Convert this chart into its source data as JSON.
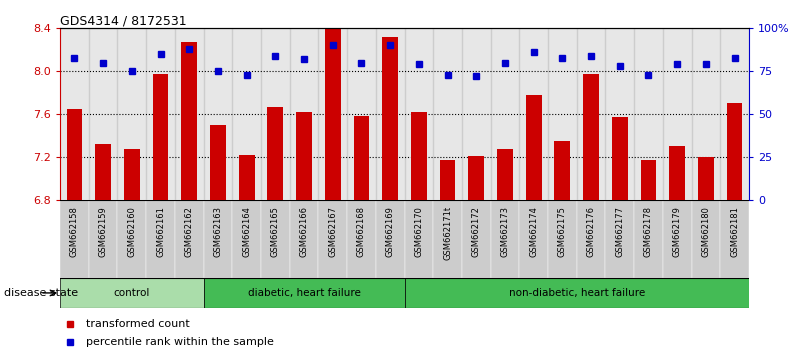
{
  "title": "GDS4314 / 8172531",
  "samples": [
    "GSM662158",
    "GSM662159",
    "GSM662160",
    "GSM662161",
    "GSM662162",
    "GSM662163",
    "GSM662164",
    "GSM662165",
    "GSM662166",
    "GSM662167",
    "GSM662168",
    "GSM662169",
    "GSM662170",
    "GSM662171t",
    "GSM662172",
    "GSM662173",
    "GSM662174",
    "GSM662175",
    "GSM662176",
    "GSM662177",
    "GSM662178",
    "GSM662179",
    "GSM662180",
    "GSM662181"
  ],
  "bar_values": [
    7.65,
    7.32,
    7.28,
    7.97,
    8.27,
    7.5,
    7.22,
    7.67,
    7.62,
    8.4,
    7.58,
    8.32,
    7.62,
    7.17,
    7.21,
    7.28,
    7.78,
    7.35,
    7.97,
    7.57,
    7.17,
    7.3,
    7.2,
    7.7
  ],
  "dot_values": [
    83,
    80,
    75,
    85,
    88,
    75,
    73,
    84,
    82,
    90,
    80,
    90,
    79,
    73,
    72,
    80,
    86,
    83,
    84,
    78,
    73,
    79,
    79,
    83
  ],
  "ylim_left": [
    6.8,
    8.4
  ],
  "ylim_right": [
    0,
    100
  ],
  "yticks_left": [
    6.8,
    7.2,
    7.6,
    8.0,
    8.4
  ],
  "yticks_right": [
    0,
    25,
    50,
    75,
    100
  ],
  "ytick_right_labels": [
    "0",
    "25",
    "50",
    "75",
    "100%"
  ],
  "bar_color": "#CC0000",
  "dot_color": "#0000CC",
  "groups": [
    {
      "label": "control",
      "start": 0,
      "end": 5
    },
    {
      "label": "diabetic, heart failure",
      "start": 5,
      "end": 12
    },
    {
      "label": "non-diabetic, heart failure",
      "start": 12,
      "end": 24
    }
  ],
  "group_light_green": "#AADDAA",
  "group_dark_green": "#44BB55",
  "disease_state_label": "disease state",
  "legend_items": [
    {
      "label": "transformed count",
      "color": "#CC0000"
    },
    {
      "label": "percentile rank within the sample",
      "color": "#0000CC"
    }
  ],
  "hline_color": "black",
  "bg_color": "#FFFFFF",
  "sample_bg_color": "#BBBBBB"
}
